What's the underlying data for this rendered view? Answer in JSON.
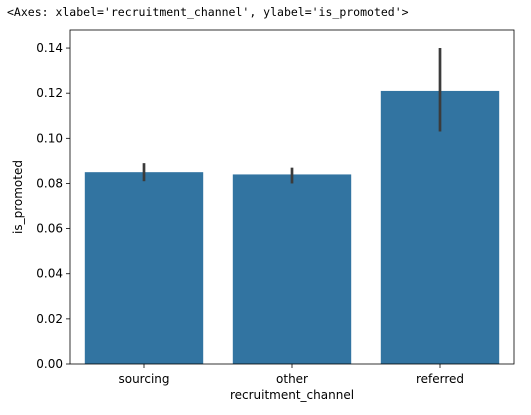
{
  "output_repr": "<Axes: xlabel='recruitment_channel', ylabel='is_promoted'>",
  "chart_data": {
    "type": "bar",
    "categories": [
      "sourcing",
      "other",
      "referred"
    ],
    "values": [
      0.085,
      0.084,
      0.121
    ],
    "error_bars": [
      {
        "low": 0.081,
        "high": 0.089
      },
      {
        "low": 0.08,
        "high": 0.087
      },
      {
        "low": 0.103,
        "high": 0.14
      }
    ],
    "xlabel": "recruitment_channel",
    "ylabel": "is_promoted",
    "ylim": [
      0,
      0.148
    ],
    "yticks": [
      0.0,
      0.02,
      0.04,
      0.06,
      0.08,
      0.1,
      0.12,
      0.14
    ],
    "ytick_labels": [
      "0.00",
      "0.02",
      "0.04",
      "0.06",
      "0.08",
      "0.10",
      "0.12",
      "0.14"
    ],
    "bar_color": "#3274a1",
    "errorbar_color": "#3b3b3b",
    "grid": false
  }
}
